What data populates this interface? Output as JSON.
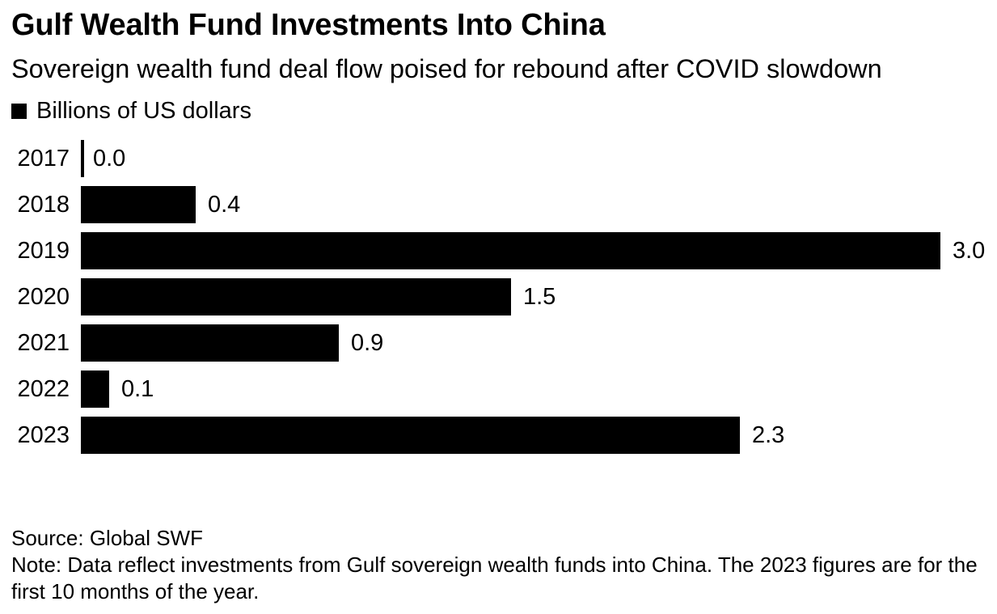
{
  "page": {
    "background_color": "#ffffff",
    "text_color": "#000000"
  },
  "chart_data": {
    "type": "bar",
    "orientation": "horizontal",
    "title": "Gulf Wealth Fund Investments Into China",
    "subtitle": "Sovereign wealth fund deal flow poised for rebound after COVID slowdown",
    "legend": [
      {
        "label": "Billions of US dollars",
        "swatch_color": "#000000"
      }
    ],
    "legend_position": "top-left",
    "categories": [
      "2017",
      "2018",
      "2019",
      "2020",
      "2021",
      "2022",
      "2023"
    ],
    "values": [
      0.0,
      0.4,
      3.0,
      1.5,
      0.9,
      0.1,
      2.3
    ],
    "value_labels": [
      "0.0",
      "0.4",
      "3.0",
      "1.5",
      "0.9",
      "0.1",
      "2.3"
    ],
    "xlim": [
      0,
      3.0
    ],
    "bar_color": "#000000",
    "axis_color": "#000000",
    "grid": false,
    "source": "Source: Global SWF",
    "note": "Note: Data reflect investments from Gulf sovereign wealth funds into China. The 2023 figures are for the first 10 months of the year."
  }
}
